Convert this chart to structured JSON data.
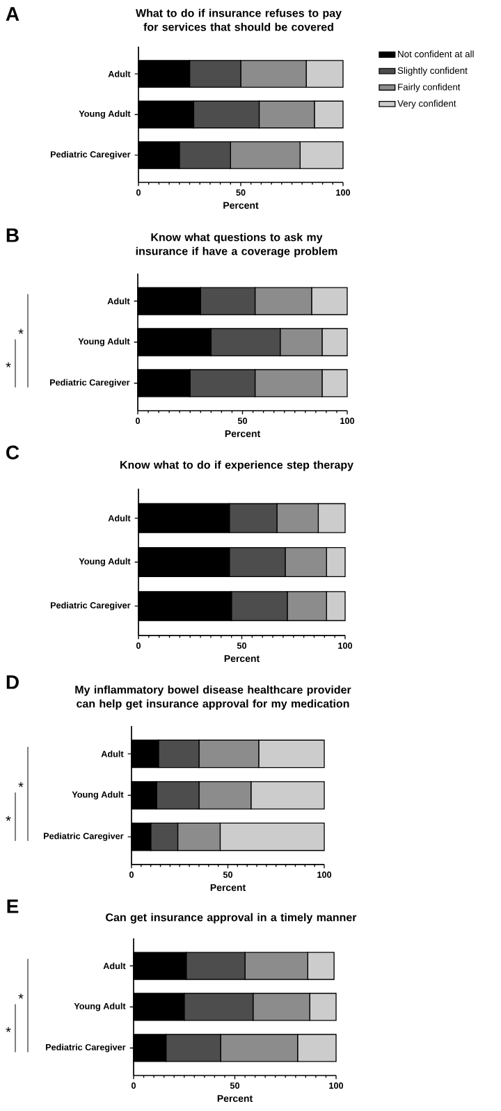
{
  "chart_data": [
    {
      "type": "bar",
      "orientation": "horizontal",
      "stacked": true,
      "title": "What to do if insurance refuses to pay for services that should be covered",
      "xlabel": "Percent",
      "categories": [
        "Adult",
        "Young Adult",
        "Pediatric Caregiver"
      ],
      "series": [
        {
          "name": "Not confident at all",
          "color": "#000000",
          "values": [
            25,
            27,
            20
          ]
        },
        {
          "name": "Slightly confident",
          "color": "#4d4d4d",
          "values": [
            25,
            32,
            25
          ]
        },
        {
          "name": "Fairly confident",
          "color": "#8c8c8c",
          "values": [
            32,
            27,
            34
          ]
        },
        {
          "name": "Very confident",
          "color": "#cccccc",
          "values": [
            18,
            14,
            21
          ]
        }
      ],
      "xlim": [
        0,
        100
      ],
      "xticks": [
        0,
        {
          "value": 5,
          "label": null
        },
        {
          "value": 10,
          "label": null
        },
        {
          "value": 15,
          "label": null
        },
        {
          "value": 20,
          "label": null
        },
        {
          "value": 25,
          "label": null
        },
        {
          "value": 30,
          "label": null
        },
        {
          "value": 35,
          "label": null
        },
        {
          "value": 40,
          "label": null
        },
        {
          "value": 45,
          "label": null
        },
        50,
        {
          "value": 55,
          "label": null
        },
        {
          "value": 60,
          "label": null
        },
        {
          "value": 65,
          "label": null
        },
        {
          "value": 70,
          "label": null
        },
        {
          "value": 75,
          "label": null
        },
        {
          "value": 80,
          "label": null
        },
        {
          "value": 85,
          "label": null
        },
        {
          "value": 90,
          "label": null
        },
        {
          "value": 95,
          "label": null
        },
        100
      ],
      "legend": "right",
      "annotations": [
        "A"
      ]
    },
    {
      "type": "bar",
      "orientation": "horizontal",
      "stacked": true,
      "title": "Know what questions to ask my insurance if have a coverage problem",
      "xlabel": "Percent",
      "categories": [
        "Adult",
        "Young Adult",
        "Pediatric Caregiver"
      ],
      "series": [
        {
          "color": "#000000",
          "values": [
            30,
            35,
            25
          ]
        },
        {
          "color": "#4d4d4d",
          "values": [
            26,
            33,
            31
          ]
        },
        {
          "color": "#8c8c8c",
          "values": [
            27,
            20,
            32
          ]
        },
        {
          "color": "#cccccc",
          "values": [
            17,
            12,
            12
          ]
        }
      ],
      "xlim": [
        0,
        100
      ],
      "xticks": [
        0,
        {
          "value": 5,
          "label": null
        },
        {
          "value": 10,
          "label": null
        },
        {
          "value": 15,
          "label": null
        },
        {
          "value": 20,
          "label": null
        },
        {
          "value": 25,
          "label": null
        },
        {
          "value": 30,
          "label": null
        },
        {
          "value": 35,
          "label": null
        },
        {
          "value": 40,
          "label": null
        },
        {
          "value": 45,
          "label": null
        },
        50,
        {
          "value": 55,
          "label": null
        },
        {
          "value": 60,
          "label": null
        },
        {
          "value": 65,
          "label": null
        },
        {
          "value": 70,
          "label": null
        },
        {
          "value": 75,
          "label": null
        },
        {
          "value": 80,
          "label": null
        },
        {
          "value": 85,
          "label": null
        },
        {
          "value": 90,
          "label": null
        },
        {
          "value": 95,
          "label": null
        },
        100
      ],
      "annotations": [
        "B",
        "*",
        "*"
      ]
    },
    {
      "type": "bar",
      "orientation": "horizontal",
      "stacked": true,
      "title": "Know what to do if experience step therapy",
      "xlabel": "Percent",
      "categories": [
        "Adult",
        "Young Adult",
        "Pediatric Caregiver"
      ],
      "series": [
        {
          "color": "#000000",
          "values": [
            44,
            44,
            45
          ]
        },
        {
          "color": "#4d4d4d",
          "values": [
            23,
            27,
            27
          ]
        },
        {
          "color": "#8c8c8c",
          "values": [
            20,
            20,
            19
          ]
        },
        {
          "color": "#cccccc",
          "values": [
            13,
            9,
            9
          ]
        }
      ],
      "xlim": [
        0,
        100
      ],
      "xticks": [
        0,
        {
          "value": 5,
          "label": null
        },
        {
          "value": 10,
          "label": null
        },
        {
          "value": 15,
          "label": null
        },
        {
          "value": 20,
          "label": null
        },
        {
          "value": 25,
          "label": null
        },
        {
          "value": 30,
          "label": null
        },
        {
          "value": 35,
          "label": null
        },
        {
          "value": 40,
          "label": null
        },
        {
          "value": 45,
          "label": null
        },
        50,
        {
          "value": 55,
          "label": null
        },
        {
          "value": 60,
          "label": null
        },
        {
          "value": 65,
          "label": null
        },
        {
          "value": 70,
          "label": null
        },
        {
          "value": 75,
          "label": null
        },
        {
          "value": 80,
          "label": null
        },
        {
          "value": 85,
          "label": null
        },
        {
          "value": 90,
          "label": null
        },
        {
          "value": 95,
          "label": null
        },
        100
      ],
      "annotations": [
        "C"
      ]
    },
    {
      "type": "bar",
      "orientation": "horizontal",
      "stacked": true,
      "title": "My inflammatory bowel disease healthcare provider can help get insurance approval for my medication",
      "xlabel": "Percent",
      "categories": [
        "Adult",
        "Young Adult",
        "Pediatric Caregiver"
      ],
      "series": [
        {
          "color": "#000000",
          "values": [
            14,
            13,
            10
          ]
        },
        {
          "color": "#4d4d4d",
          "values": [
            21,
            22,
            14
          ]
        },
        {
          "color": "#8c8c8c",
          "values": [
            31,
            27,
            22
          ]
        },
        {
          "color": "#cccccc",
          "values": [
            34,
            38,
            54
          ]
        }
      ],
      "xlim": [
        0,
        100
      ],
      "xticks": [
        0,
        {
          "value": 5,
          "label": null
        },
        {
          "value": 10,
          "label": null
        },
        {
          "value": 15,
          "label": null
        },
        {
          "value": 20,
          "label": null
        },
        {
          "value": 25,
          "label": null
        },
        {
          "value": 30,
          "label": null
        },
        {
          "value": 35,
          "label": null
        },
        {
          "value": 40,
          "label": null
        },
        {
          "value": 45,
          "label": null
        },
        50,
        {
          "value": 55,
          "label": null
        },
        {
          "value": 60,
          "label": null
        },
        {
          "value": 65,
          "label": null
        },
        {
          "value": 70,
          "label": null
        },
        {
          "value": 75,
          "label": null
        },
        {
          "value": 80,
          "label": null
        },
        {
          "value": 85,
          "label": null
        },
        {
          "value": 90,
          "label": null
        },
        {
          "value": 95,
          "label": null
        },
        100
      ],
      "annotations": [
        "D",
        "*",
        "*"
      ]
    },
    {
      "type": "bar",
      "orientation": "horizontal",
      "stacked": true,
      "title": "Can get insurance approval in a timely manner",
      "xlabel": "Percent",
      "categories": [
        "Adult",
        "Young Adult",
        "Pediatric Caregiver"
      ],
      "series": [
        {
          "color": "#000000",
          "values": [
            26,
            25,
            16
          ]
        },
        {
          "color": "#4d4d4d",
          "values": [
            29,
            34,
            27
          ]
        },
        {
          "color": "#8c8c8c",
          "values": [
            31,
            28,
            38
          ]
        },
        {
          "color": "#cccccc",
          "values": [
            13,
            13,
            19
          ]
        }
      ],
      "xlim": [
        0,
        100
      ],
      "xticks": [
        0,
        {
          "value": 5,
          "label": null
        },
        {
          "value": 10,
          "label": null
        },
        {
          "value": 15,
          "label": null
        },
        {
          "value": 20,
          "label": null
        },
        {
          "value": 25,
          "label": null
        },
        {
          "value": 30,
          "label": null
        },
        {
          "value": 35,
          "label": null
        },
        {
          "value": 40,
          "label": null
        },
        {
          "value": 45,
          "label": null
        },
        50,
        {
          "value": 55,
          "label": null
        },
        {
          "value": 60,
          "label": null
        },
        {
          "value": 65,
          "label": null
        },
        {
          "value": 70,
          "label": null
        },
        {
          "value": 75,
          "label": null
        },
        {
          "value": 80,
          "label": null
        },
        {
          "value": 85,
          "label": null
        },
        {
          "value": 90,
          "label": null
        },
        {
          "value": 95,
          "label": null
        },
        100
      ],
      "annotations": [
        "E",
        "*",
        "*"
      ]
    }
  ]
}
